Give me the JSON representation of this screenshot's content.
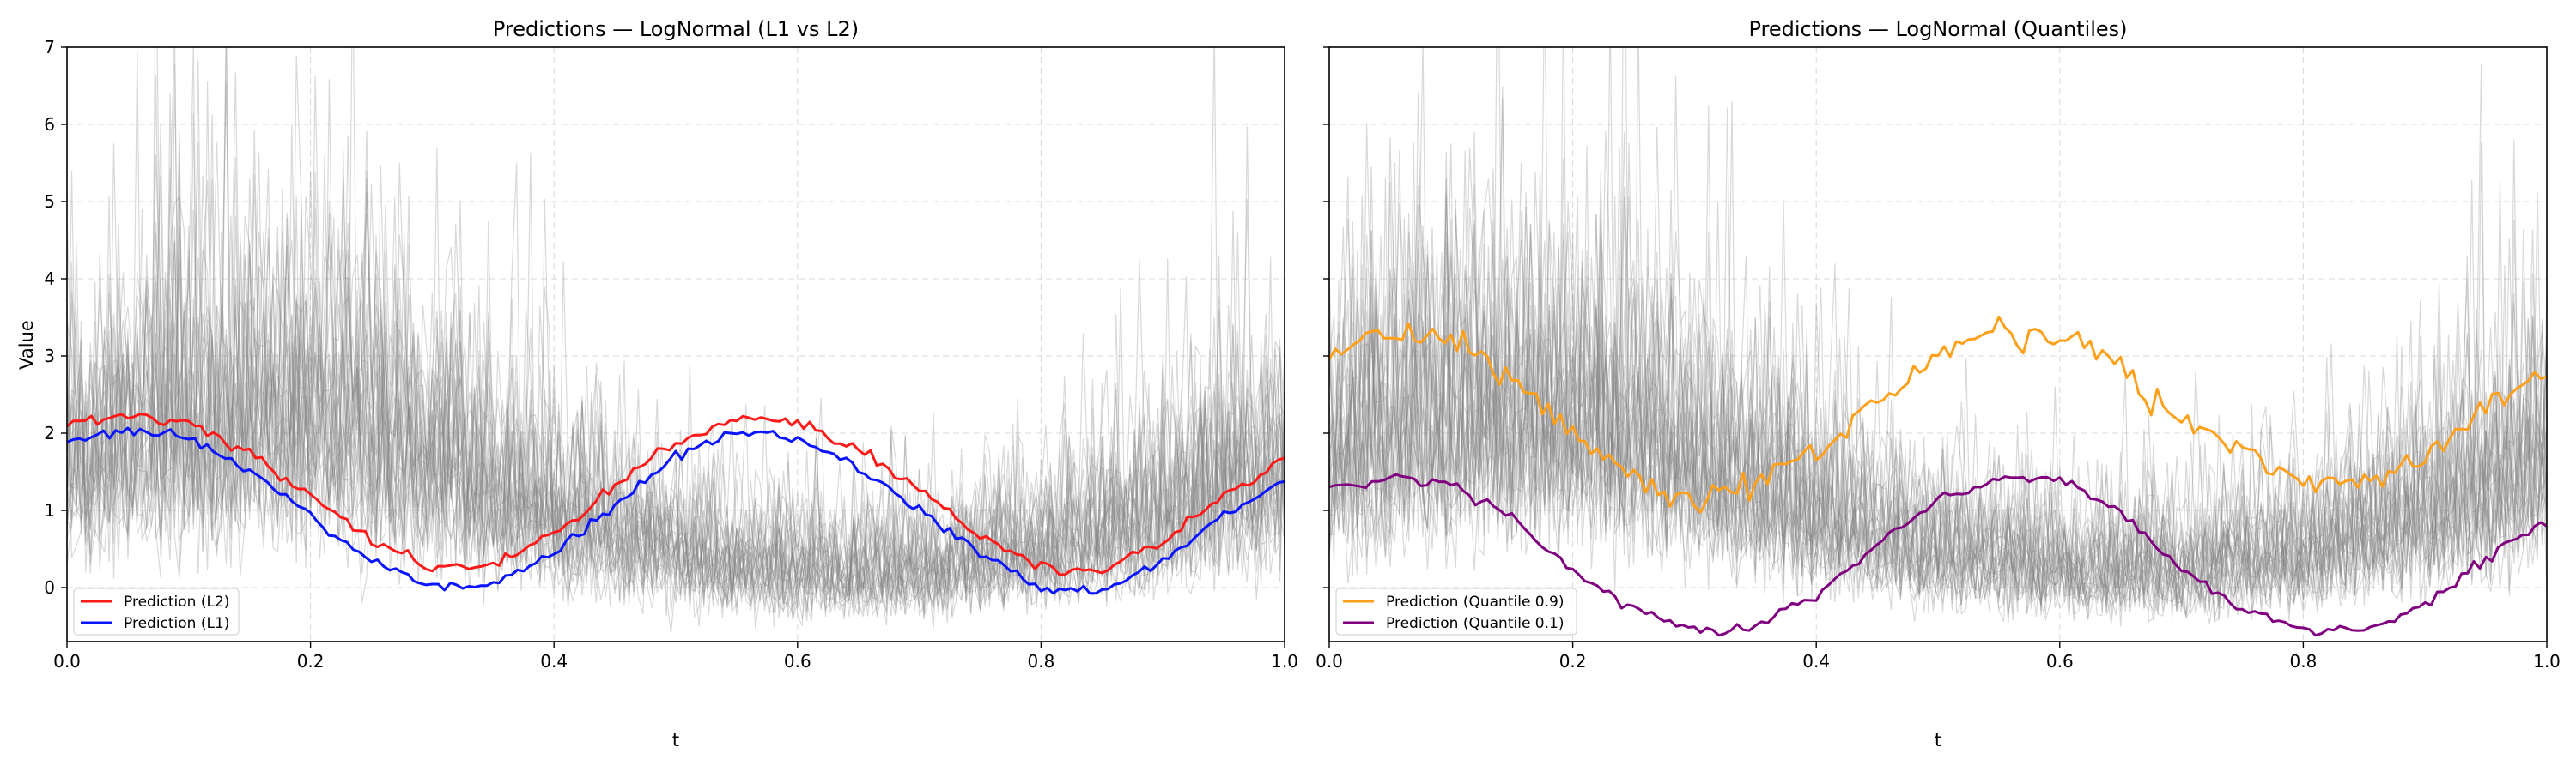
{
  "colors": {
    "background": "#ffffff",
    "sample_lines": "#808080",
    "grid": "#d9d9d9",
    "l2": "#ff1a1a",
    "l1": "#0a14ff",
    "q90": "#ffa01a",
    "q10": "#800080"
  },
  "chart_data": [
    {
      "type": "line",
      "title": "Predictions — LogNormal (L1 vs L2)",
      "xlabel": "t",
      "ylabel": "Value",
      "xlim": [
        0.0,
        1.0
      ],
      "ylim": [
        -0.7,
        7.0
      ],
      "xticks": [
        "0.0",
        "0.2",
        "0.4",
        "0.6",
        "0.8",
        "1.0"
      ],
      "yticks": [
        "0",
        "1",
        "2",
        "3",
        "4",
        "5",
        "6",
        "7"
      ],
      "grid": true,
      "legend_position": "bottom-left",
      "background_samples": "many gray noisy log-normal sample paths",
      "series": [
        {
          "name": "Prediction (L2)",
          "color": "#ff1a1a",
          "x": [
            0.0,
            0.05,
            0.1,
            0.15,
            0.2,
            0.25,
            0.3,
            0.35,
            0.4,
            0.45,
            0.5,
            0.55,
            0.6,
            0.65,
            0.7,
            0.75,
            0.8,
            0.85,
            0.9,
            0.95,
            1.0
          ],
          "y": [
            2.1,
            2.22,
            2.15,
            1.75,
            1.2,
            0.6,
            0.25,
            0.3,
            0.7,
            1.3,
            1.9,
            2.2,
            2.15,
            1.8,
            1.25,
            0.7,
            0.25,
            0.25,
            0.6,
            1.2,
            1.65
          ]
        },
        {
          "name": "Prediction (L1)",
          "color": "#0a14ff",
          "x": [
            0.0,
            0.05,
            0.1,
            0.15,
            0.2,
            0.25,
            0.3,
            0.35,
            0.4,
            0.45,
            0.5,
            0.55,
            0.6,
            0.65,
            0.7,
            0.75,
            0.8,
            0.85,
            0.9,
            0.95,
            1.0
          ],
          "y": [
            1.9,
            2.02,
            1.95,
            1.5,
            0.95,
            0.35,
            0.0,
            0.05,
            0.45,
            1.05,
            1.7,
            2.02,
            1.95,
            1.55,
            1.0,
            0.45,
            0.0,
            -0.05,
            0.35,
            0.95,
            1.4
          ]
        }
      ]
    },
    {
      "type": "line",
      "title": "Predictions — LogNormal (Quantiles)",
      "xlabel": "t",
      "ylabel": "",
      "xlim": [
        0.0,
        1.0
      ],
      "ylim": [
        -0.7,
        7.0
      ],
      "xticks": [
        "0.0",
        "0.2",
        "0.4",
        "0.6",
        "0.8",
        "1.0"
      ],
      "yticks": [],
      "grid": true,
      "legend_position": "bottom-left",
      "background_samples": "many gray noisy log-normal sample paths",
      "series": [
        {
          "name": "Prediction (Quantile 0.9)",
          "color": "#ffa01a",
          "x": [
            0.0,
            0.05,
            0.1,
            0.15,
            0.2,
            0.25,
            0.3,
            0.35,
            0.4,
            0.45,
            0.5,
            0.55,
            0.6,
            0.65,
            0.7,
            0.75,
            0.8,
            0.85,
            0.9,
            0.95,
            1.0
          ],
          "y": [
            3.0,
            3.3,
            3.25,
            2.7,
            2.0,
            1.4,
            1.15,
            1.35,
            1.7,
            2.4,
            3.0,
            3.35,
            3.25,
            2.85,
            2.2,
            1.75,
            1.35,
            1.4,
            1.7,
            2.3,
            2.8
          ]
        },
        {
          "name": "Prediction (Quantile 0.1)",
          "color": "#800080",
          "x": [
            0.0,
            0.05,
            0.1,
            0.15,
            0.2,
            0.25,
            0.3,
            0.35,
            0.4,
            0.45,
            0.5,
            0.55,
            0.6,
            0.65,
            0.7,
            0.75,
            0.8,
            0.85,
            0.9,
            0.95,
            1.0
          ],
          "y": [
            1.3,
            1.42,
            1.35,
            0.9,
            0.2,
            -0.3,
            -0.55,
            -0.5,
            -0.1,
            0.55,
            1.15,
            1.42,
            1.4,
            0.95,
            0.25,
            -0.3,
            -0.55,
            -0.55,
            -0.25,
            0.4,
            0.85
          ]
        }
      ]
    }
  ]
}
